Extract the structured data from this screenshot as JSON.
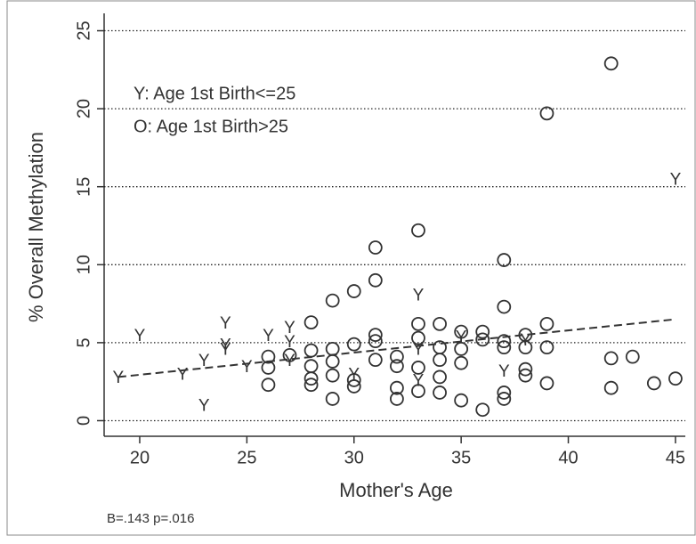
{
  "chart_data": {
    "type": "scatter",
    "xlabel": "Mother's Age",
    "ylabel": "% Overall Methylation",
    "annotations": [
      "Y: Age 1st Birth<=25",
      "O: Age 1st Birth>25"
    ],
    "footnote": "B=.143 p=.016",
    "xlim": [
      18.34,
      45.46
    ],
    "xticks": [
      20,
      25,
      30,
      35,
      40,
      45
    ],
    "ylim": [
      -1,
      26
    ],
    "yticks": [
      0,
      5,
      10,
      15,
      20,
      25
    ],
    "grid": true,
    "series": [
      {
        "name": "Y: Age 1st Birth<=25",
        "marker": "Y",
        "color": "#333333",
        "x": [
          19,
          20,
          22,
          23,
          23,
          24,
          24,
          24,
          25,
          26,
          27,
          27,
          27,
          30,
          33,
          33,
          33,
          35,
          37,
          38,
          45
        ],
        "values": [
          2.7,
          5.4,
          2.9,
          3.8,
          0.9,
          6.2,
          4.8,
          4.5,
          3.4,
          5.4,
          5.9,
          5.0,
          3.8,
          2.9,
          8.0,
          4.5,
          2.5,
          5.3,
          3.1,
          5.1,
          15.4
        ]
      },
      {
        "name": "O: Age 1st Birth>25",
        "marker": "circle",
        "color": "#333333",
        "x": [
          26,
          26,
          26,
          27,
          28,
          28,
          28,
          28,
          28,
          29,
          29,
          29,
          29,
          29,
          30,
          30,
          30,
          30,
          31,
          31,
          31,
          31,
          31,
          32,
          32,
          32,
          32,
          33,
          33,
          33,
          33,
          33,
          34,
          34,
          34,
          34,
          34,
          35,
          35,
          35,
          35,
          36,
          36,
          36,
          37,
          37,
          37,
          37,
          37,
          37,
          38,
          38,
          38,
          38,
          39,
          39,
          39,
          39,
          42,
          42,
          42,
          43,
          44,
          45
        ],
        "values": [
          4.1,
          3.4,
          2.3,
          4.2,
          6.3,
          4.5,
          3.5,
          2.7,
          2.3,
          7.7,
          4.6,
          3.8,
          2.9,
          1.4,
          8.3,
          4.9,
          2.6,
          2.2,
          11.1,
          9.0,
          5.5,
          5.1,
          3.9,
          4.1,
          3.5,
          2.1,
          1.4,
          12.2,
          6.2,
          5.3,
          3.4,
          1.9,
          6.2,
          4.7,
          3.9,
          2.8,
          1.8,
          5.7,
          4.6,
          3.7,
          1.3,
          5.7,
          5.2,
          0.7,
          10.3,
          7.3,
          5.1,
          4.7,
          1.8,
          1.4,
          5.5,
          4.7,
          3.3,
          2.9,
          19.7,
          6.2,
          4.7,
          2.4,
          22.9,
          4.0,
          2.1,
          4.1,
          2.4,
          2.7
        ]
      },
      {
        "marker": "dashed-line",
        "color": "#333333",
        "x": [
          19,
          45
        ],
        "values": [
          2.8,
          6.5
        ]
      }
    ]
  }
}
